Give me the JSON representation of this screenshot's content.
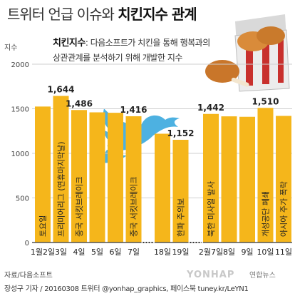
{
  "title": {
    "part1": "트위터 언급 이슈와 ",
    "part2": "치킨지수 관계"
  },
  "description": {
    "term": "치킨지수",
    "line1": ": 다음소프트가 치킨을 통해 행복과의",
    "line2": "상관관계를 분석하기 위해 개발한 지수"
  },
  "unit": "지수",
  "source": "자료/다음소프트",
  "credit": "장성구 기자 / 20160308   트위터 @yonhap_graphics, 페이스북 tuney.kr/LeYN1",
  "watermark": "YONHAP",
  "logo": "연합뉴스",
  "colors": {
    "bar": "#f5b61b",
    "grid": "#cfcfcf",
    "twitter": "#2ea3dc",
    "axis": "#555555"
  },
  "chart_data": {
    "type": "bar",
    "categories": [
      "1월2일",
      "3일",
      "4일",
      "5일",
      "6일",
      "7일",
      "18일",
      "19일",
      "2월7일",
      "8일",
      "9일",
      "10일",
      "11일"
    ],
    "values": [
      1525,
      1644,
      1486,
      1460,
      1455,
      1416,
      1220,
      1152,
      1442,
      1415,
      1410,
      1510,
      1420
    ],
    "data_labels": [
      "",
      "1,644",
      "1,486",
      "",
      "",
      "1,416",
      "",
      "1,152",
      "1,442",
      "",
      "",
      "1,510",
      ""
    ],
    "annotations": [
      "토요일",
      "프리미어리그 (연휴마지막날)",
      "중국 서킷브레이크",
      "",
      "",
      "중국 서킷브레이크",
      "",
      "한파 주의보",
      "북한 미사일 발사",
      "",
      "",
      "개성공단 폐쇄",
      "아시아 주가 폭락"
    ],
    "yticks": [
      "0",
      "500",
      "1000",
      "1500",
      "2000"
    ],
    "ylim": [
      0,
      2000
    ],
    "ylabel": "지수",
    "grid": true
  }
}
